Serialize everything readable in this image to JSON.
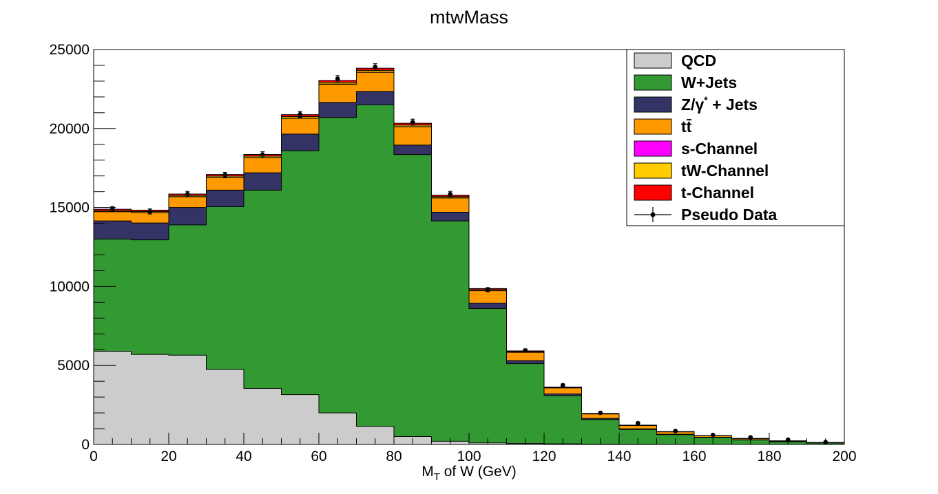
{
  "chart_data": {
    "type": "bar",
    "stacked": true,
    "title": "mtwMass",
    "xlabel": {
      "main": "M",
      "sub": "T",
      "rest": " of W (GeV)"
    },
    "ylabel": "",
    "xlim": [
      0,
      200
    ],
    "ylim": [
      0,
      25000
    ],
    "x_ticks": [
      0,
      20,
      40,
      60,
      80,
      100,
      120,
      140,
      160,
      180,
      200
    ],
    "y_ticks": [
      0,
      5000,
      10000,
      15000,
      20000,
      25000
    ],
    "bin_edges": [
      0,
      10,
      20,
      30,
      40,
      50,
      60,
      70,
      80,
      90,
      100,
      110,
      120,
      130,
      140,
      150,
      160,
      170,
      180,
      190,
      200
    ],
    "legend_position": "top-right",
    "series": [
      {
        "name": "QCD",
        "color": "#cccccc",
        "values": [
          5900,
          5700,
          5650,
          4750,
          3550,
          3150,
          2000,
          1150,
          500,
          200,
          100,
          60,
          40,
          20,
          10,
          5,
          0,
          0,
          0,
          0
        ]
      },
      {
        "name": "W+Jets",
        "color": "#339933",
        "values": [
          7100,
          7250,
          8250,
          10300,
          12550,
          15450,
          18700,
          20350,
          17850,
          13950,
          8500,
          5050,
          3050,
          1560,
          935,
          615,
          440,
          290,
          170,
          95
        ]
      },
      {
        "name": "Z/γ* + Jets",
        "color": "#333366",
        "values": [
          1150,
          1070,
          1100,
          1050,
          1100,
          1050,
          950,
          850,
          600,
          550,
          350,
          200,
          110,
          70,
          45,
          30,
          20,
          10,
          10,
          5
        ]
      },
      {
        "name": "tt̄",
        "color": "#ff9900",
        "values": [
          580,
          650,
          680,
          800,
          950,
          1000,
          1150,
          1200,
          1150,
          900,
          780,
          520,
          380,
          280,
          210,
          150,
          95,
          70,
          40,
          20
        ]
      },
      {
        "name": "s-Channel",
        "color": "#ff00ff",
        "values": [
          10,
          10,
          10,
          12,
          14,
          16,
          18,
          18,
          16,
          12,
          9,
          6,
          4,
          3,
          2,
          1,
          1,
          1,
          1,
          0
        ]
      },
      {
        "name": "tW-Channel",
        "color": "#ffcc00",
        "values": [
          60,
          65,
          70,
          75,
          85,
          90,
          100,
          110,
          100,
          80,
          60,
          40,
          25,
          15,
          10,
          7,
          5,
          4,
          3,
          2
        ]
      },
      {
        "name": "t-Channel",
        "color": "#ff0000",
        "values": [
          90,
          90,
          95,
          100,
          110,
          120,
          130,
          140,
          120,
          90,
          70,
          50,
          30,
          20,
          15,
          10,
          7,
          5,
          4,
          3
        ]
      }
    ],
    "pseudo_data": {
      "name": "Pseudo Data",
      "x": [
        5,
        15,
        25,
        35,
        45,
        55,
        65,
        75,
        85,
        95,
        105,
        115,
        125,
        135,
        145,
        155,
        165,
        175,
        185,
        195
      ],
      "y": [
        14900,
        14750,
        15850,
        17050,
        18350,
        20900,
        23150,
        23900,
        20400,
        15850,
        9800,
        5950,
        3750,
        2000,
        1350,
        850,
        600,
        450,
        300,
        150
      ],
      "err": [
        160,
        160,
        170,
        170,
        180,
        190,
        200,
        200,
        190,
        170,
        130,
        100,
        80,
        60,
        50,
        40,
        35,
        30,
        25,
        20
      ]
    }
  }
}
